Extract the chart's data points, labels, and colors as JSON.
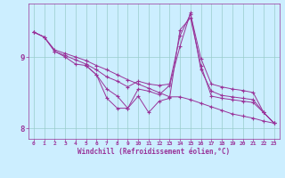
{
  "xlabel": "Windchill (Refroidissement éolien,°C)",
  "bg_color": "#cceeff",
  "line_color": "#993399",
  "grid_color": "#99cccc",
  "xlim": [
    -0.5,
    23.5
  ],
  "ylim": [
    7.85,
    9.75
  ],
  "xticks": [
    0,
    1,
    2,
    3,
    4,
    5,
    6,
    7,
    8,
    9,
    10,
    11,
    12,
    13,
    14,
    15,
    16,
    17,
    18,
    19,
    20,
    21,
    22,
    23
  ],
  "yticks": [
    8,
    9
  ],
  "line1_x": [
    0,
    1,
    2,
    3,
    4,
    5,
    6,
    7,
    8,
    9,
    10,
    11,
    12,
    13,
    14,
    15,
    16,
    17,
    18,
    19,
    20,
    21,
    22,
    23
  ],
  "line1_y": [
    9.35,
    9.28,
    9.1,
    9.05,
    9.0,
    8.95,
    8.88,
    8.82,
    8.75,
    8.68,
    8.62,
    8.56,
    8.5,
    8.44,
    8.44,
    8.4,
    8.35,
    8.3,
    8.25,
    8.2,
    8.17,
    8.14,
    8.1,
    8.07
  ],
  "line2_x": [
    0,
    1,
    2,
    3,
    4,
    5,
    6,
    7,
    8,
    9,
    10,
    11,
    12,
    13,
    14,
    15,
    16,
    17,
    18,
    19,
    20,
    21,
    22,
    23
  ],
  "line2_y": [
    9.35,
    9.28,
    9.08,
    9.02,
    8.96,
    8.9,
    8.82,
    8.72,
    8.66,
    8.58,
    8.66,
    8.62,
    8.6,
    8.62,
    9.3,
    9.6,
    8.98,
    8.62,
    8.58,
    8.55,
    8.53,
    8.5,
    8.22,
    8.07
  ],
  "line3_x": [
    0,
    1,
    2,
    3,
    4,
    5,
    6,
    7,
    8,
    9,
    10,
    11,
    12,
    13,
    14,
    15,
    16,
    17,
    18,
    19,
    20,
    21,
    22,
    23
  ],
  "line3_y": [
    9.35,
    9.28,
    9.08,
    9.0,
    8.9,
    8.88,
    8.75,
    8.55,
    8.45,
    8.28,
    8.55,
    8.52,
    8.47,
    8.6,
    9.15,
    9.62,
    8.82,
    8.52,
    8.46,
    8.44,
    8.42,
    8.4,
    8.22,
    8.07
  ],
  "line4_x": [
    5,
    6,
    7,
    8,
    9,
    10,
    11,
    12,
    13,
    14,
    15,
    16,
    17,
    18,
    19,
    20,
    21,
    22,
    23
  ],
  "line4_y": [
    8.88,
    8.75,
    8.42,
    8.28,
    8.28,
    8.45,
    8.22,
    8.38,
    8.42,
    9.38,
    9.55,
    8.88,
    8.45,
    8.42,
    8.4,
    8.38,
    8.36,
    8.22,
    8.07
  ]
}
